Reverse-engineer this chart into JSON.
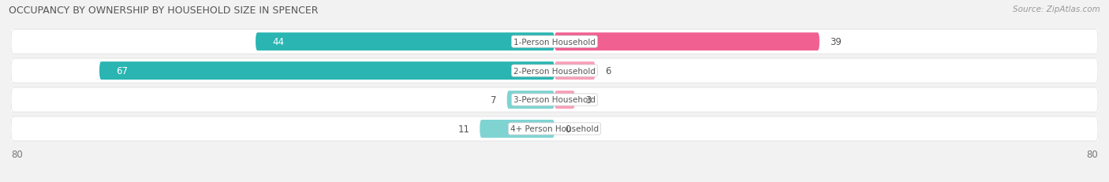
{
  "title": "OCCUPANCY BY OWNERSHIP BY HOUSEHOLD SIZE IN SPENCER",
  "source": "Source: ZipAtlas.com",
  "categories": [
    "1-Person Household",
    "2-Person Household",
    "3-Person Household",
    "4+ Person Household"
  ],
  "owner_values": [
    44,
    67,
    7,
    11
  ],
  "renter_values": [
    39,
    6,
    3,
    0
  ],
  "owner_color_dark": "#2ab5b2",
  "owner_color_light": "#7fd4d2",
  "renter_color_dark": "#f06090",
  "renter_color_light": "#f8a0b8",
  "axis_max": 80,
  "bg_color": "#f2f2f2",
  "bar_row_color": "#e8e8e8",
  "label_font_size": 8.5,
  "cat_font_size": 7.5,
  "title_font_size": 9.0,
  "source_font_size": 7.5,
  "legend_font_size": 8.0
}
